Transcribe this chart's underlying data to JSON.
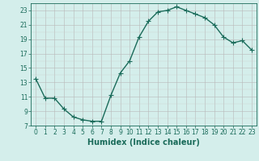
{
  "x": [
    0,
    1,
    2,
    3,
    4,
    5,
    6,
    7,
    8,
    9,
    10,
    11,
    12,
    13,
    14,
    15,
    16,
    17,
    18,
    19,
    20,
    21,
    22,
    23
  ],
  "y": [
    13.5,
    10.8,
    10.8,
    9.3,
    8.2,
    7.8,
    7.6,
    7.6,
    11.2,
    14.3,
    16.0,
    19.3,
    21.5,
    22.8,
    23.0,
    23.5,
    23.0,
    22.5,
    22.0,
    21.0,
    19.3,
    18.5,
    18.8,
    17.5
  ],
  "line_color": "#1a6b5a",
  "marker": "+",
  "markersize": 4,
  "linewidth": 1.0,
  "bg_color": "#d4eeeb",
  "xlabel": "Humidex (Indice chaleur)",
  "xlim": [
    -0.5,
    23.5
  ],
  "ylim": [
    7,
    24
  ],
  "yticks": [
    7,
    9,
    11,
    13,
    15,
    17,
    19,
    21,
    23
  ],
  "xticks": [
    0,
    1,
    2,
    3,
    4,
    5,
    6,
    7,
    8,
    9,
    10,
    11,
    12,
    13,
    14,
    15,
    16,
    17,
    18,
    19,
    20,
    21,
    22,
    23
  ],
  "tick_color": "#1a6b5a",
  "label_color": "#1a6b5a",
  "label_fontsize": 5.5,
  "xlabel_fontsize": 7,
  "grid_major_color": "#b8b8b8",
  "grid_minor_color": "#cccccc"
}
